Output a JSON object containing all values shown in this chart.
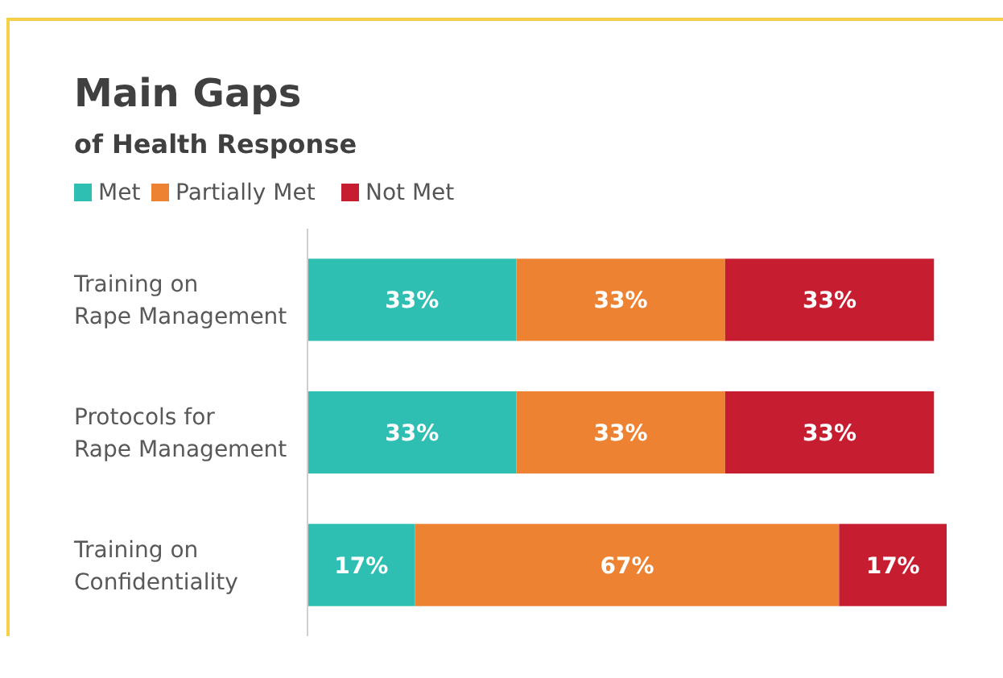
{
  "chart_data": {
    "type": "bar",
    "orientation": "horizontal",
    "stacked": true,
    "title": "Main Gaps",
    "subtitle": "of Health Response",
    "categories": [
      "Training on\nRape Management",
      "Protocols for\nRape Management",
      "Training on\nConfidentiality"
    ],
    "series": [
      {
        "name": "Met",
        "color": "#2ebfb2",
        "values": [
          33,
          33,
          17
        ],
        "value_labels": [
          "33%",
          "33%",
          "17%"
        ]
      },
      {
        "name": "Partially Met",
        "color": "#ed8232",
        "values": [
          33,
          33,
          67
        ],
        "value_labels": [
          "33%",
          "33%",
          "67%"
        ]
      },
      {
        "name": "Not Met",
        "color": "#c71d31",
        "values": [
          33,
          33,
          17
        ],
        "value_labels": [
          "33%",
          "33%",
          "17%"
        ]
      }
    ],
    "legend": "top left"
  }
}
